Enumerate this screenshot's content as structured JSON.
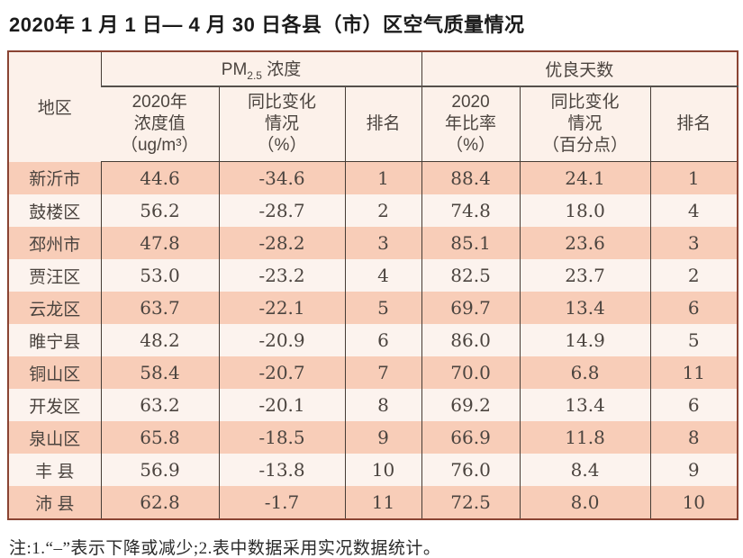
{
  "title": "2020年 1 月 1 日— 4 月 30 日各县（市）区空气质量情况",
  "footnote": "注:1.“–”表示下降或减少;2.表中数据采用实况数据统计。",
  "colors": {
    "band_pink": "#f8cdb8",
    "band_light": "#fcf3ee",
    "header_bg": "#fcf1ea",
    "outer_border": "#8a4433",
    "inner_line": "#463c35",
    "text": "#4b443f"
  },
  "table": {
    "region_header": "地区",
    "group_pm25": {
      "base": "PM",
      "sub": "2.5",
      "rest": " 浓度"
    },
    "group_good_days": "优良天数",
    "subheaders": {
      "pm_value": "2020年\n浓度值\n（ug/m³）",
      "pm_change": "同比变化\n情况\n（%）",
      "pm_rank": "排名",
      "good_rate": "2020\n年比率\n（%）",
      "good_change": "同比变化\n情况\n（百分点）",
      "good_rank": "排名"
    },
    "rows": [
      {
        "region": "新沂市",
        "pm_value": "44.6",
        "pm_change": "-34.6",
        "pm_rank": "1",
        "good_rate": "88.4",
        "good_change": "24.1",
        "good_rank": "1"
      },
      {
        "region": "鼓楼区",
        "pm_value": "56.2",
        "pm_change": "-28.7",
        "pm_rank": "2",
        "good_rate": "74.8",
        "good_change": "18.0",
        "good_rank": "4"
      },
      {
        "region": "邳州市",
        "pm_value": "47.8",
        "pm_change": "-28.2",
        "pm_rank": "3",
        "good_rate": "85.1",
        "good_change": "23.6",
        "good_rank": "3"
      },
      {
        "region": "贾汪区",
        "pm_value": "53.0",
        "pm_change": "-23.2",
        "pm_rank": "4",
        "good_rate": "82.5",
        "good_change": "23.7",
        "good_rank": "2"
      },
      {
        "region": "云龙区",
        "pm_value": "63.7",
        "pm_change": "-22.1",
        "pm_rank": "5",
        "good_rate": "69.7",
        "good_change": "13.4",
        "good_rank": "6"
      },
      {
        "region": "睢宁县",
        "pm_value": "48.2",
        "pm_change": "-20.9",
        "pm_rank": "6",
        "good_rate": "86.0",
        "good_change": "14.9",
        "good_rank": "5"
      },
      {
        "region": "铜山区",
        "pm_value": "58.4",
        "pm_change": "-20.7",
        "pm_rank": "7",
        "good_rate": "70.0",
        "good_change": "6.8",
        "good_rank": "11"
      },
      {
        "region": "开发区",
        "pm_value": "63.2",
        "pm_change": "-20.1",
        "pm_rank": "8",
        "good_rate": "69.2",
        "good_change": "13.4",
        "good_rank": "6"
      },
      {
        "region": "泉山区",
        "pm_value": "65.8",
        "pm_change": "-18.5",
        "pm_rank": "9",
        "good_rate": "66.9",
        "good_change": "11.8",
        "good_rank": "8"
      },
      {
        "region": "丰 县",
        "pm_value": "56.9",
        "pm_change": "-13.8",
        "pm_rank": "10",
        "good_rate": "76.0",
        "good_change": "8.4",
        "good_rank": "9"
      },
      {
        "region": "沛 县",
        "pm_value": "62.8",
        "pm_change": "-1.7",
        "pm_rank": "11",
        "good_rate": "72.5",
        "good_change": "8.0",
        "good_rank": "10"
      }
    ]
  }
}
